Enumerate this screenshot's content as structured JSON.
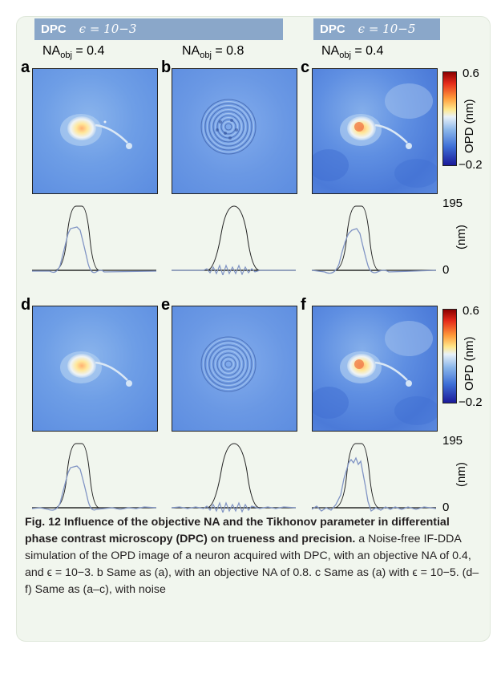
{
  "header": {
    "left_method": "DPC",
    "left_eps": "ϵ = 10−3",
    "right_method": "DPC",
    "right_eps": "ϵ = 10−5"
  },
  "columns": {
    "a_na_base": "NA",
    "a_na_sub": "obj",
    "a_na_val": " = 0.4",
    "b_na_base": "NA",
    "b_na_sub": "obj",
    "b_na_val": " = 0.8",
    "c_na_base": "NA",
    "c_na_sub": "obj",
    "c_na_val": " = 0.4"
  },
  "panel_labels": [
    "a",
    "b",
    "c",
    "d",
    "e",
    "f"
  ],
  "colorbar": {
    "max": "0.6",
    "min": "−0.2",
    "label": "OPD  (nm)"
  },
  "profile_axis": {
    "top": "195",
    "bottom": "0",
    "unit": "(nm)"
  },
  "caption": {
    "title": "Fig. 12 Influence of the objective NA and the Tikhonov parameter  in differential phase contrast microscopy (DPC) on trueness and precision.",
    "body": "a Noise-free IF-DDA simulation of the OPD image of a neuron acquired with DPC, with an objective NA of 0.4, and ϵ = 10−3. b Same as (a), with an objective NA of 0.8. c Same as (a) with ϵ = 10−5. (d–f) Same as (a–c), with noise"
  },
  "colors": {
    "frame_bg": "#f1f6ee",
    "header_bg": "#8aa7c9",
    "profile_line": "#8094c4"
  }
}
